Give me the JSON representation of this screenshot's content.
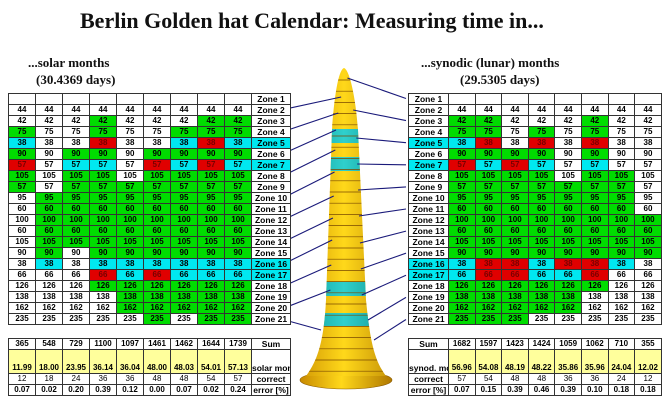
{
  "title": "Berlin Golden hat Calendar: Measuring time in...",
  "left": {
    "heading": "...solar months",
    "subheading": "(30.4369 days)",
    "zones": [
      {
        "label": "Zone 1",
        "value": "",
        "colors": "wwwwwwwww",
        "label_color": "w"
      },
      {
        "label": "Zone 2",
        "value": "44",
        "colors": "wwwwwwwww",
        "label_color": "w"
      },
      {
        "label": "Zone 3",
        "value": "42",
        "colors": "wwwgwwwgg",
        "label_color": "w"
      },
      {
        "label": "Zone 4",
        "value": "75",
        "colors": "gwwgwwggg",
        "label_color": "w"
      },
      {
        "label": "Zone 5",
        "value": "38",
        "colors": "cwwrwwcrc",
        "label_color": "c"
      },
      {
        "label": "Zone 6",
        "value": "90",
        "colors": "gwggwgggg",
        "label_color": "w"
      },
      {
        "label": "Zone 7",
        "value": "57",
        "colors": "rwccwrcrc",
        "label_color": "c"
      },
      {
        "label": "Zone 8",
        "value": "105",
        "colors": "gwggwgggg",
        "label_color": "w"
      },
      {
        "label": "Zone 9",
        "value": "57",
        "colors": "gwggggggg",
        "label_color": "w"
      },
      {
        "label": "Zone 10",
        "value": "95",
        "colors": "wgggggggg",
        "label_color": "w"
      },
      {
        "label": "Zone 11",
        "value": "60",
        "colors": "wgggggggg",
        "label_color": "w"
      },
      {
        "label": "Zone 12",
        "value": "100",
        "colors": "wgggggggg",
        "label_color": "w"
      },
      {
        "label": "Zone 13",
        "value": "60",
        "colors": "wgggggggg",
        "label_color": "w"
      },
      {
        "label": "Zone 14",
        "value": "105",
        "colors": "wgggggggg",
        "label_color": "w"
      },
      {
        "label": "Zone 15",
        "value": "90",
        "colors": "wgwgggggg",
        "label_color": "w"
      },
      {
        "label": "Zone 16",
        "value": "38",
        "colors": "wcwcccccc",
        "label_color": "c"
      },
      {
        "label": "Zone 17",
        "value": "66",
        "colors": "wwwrcrccc",
        "label_color": "c"
      },
      {
        "label": "Zone 18",
        "value": "126",
        "colors": "wwwgggggg",
        "label_color": "w"
      },
      {
        "label": "Zone 19",
        "value": "138",
        "colors": "wwwwggggg",
        "label_color": "w"
      },
      {
        "label": "Zone 20",
        "value": "162",
        "colors": "wwwwggggg",
        "label_color": "w"
      },
      {
        "label": "Zone 21",
        "value": "235",
        "colors": "wwwwwgwgg",
        "label_color": "w"
      }
    ],
    "summary": {
      "sum_label": "Sum",
      "sums": [
        "365",
        "548",
        "729",
        "1100",
        "1097",
        "1461",
        "1462",
        "1644",
        "1739"
      ],
      "month_label": "solar month",
      "months": [
        "11.99",
        "18.00",
        "23.95",
        "36.14",
        "36.04",
        "48.00",
        "48.03",
        "54.01",
        "57.13"
      ],
      "correct_label": "correct",
      "correct": [
        "12",
        "18",
        "24",
        "36",
        "36",
        "48",
        "48",
        "54",
        "57"
      ],
      "error_label": "error [%]",
      "errors": [
        "0.07",
        "0.02",
        "0.20",
        "0.39",
        "0.12",
        "0.00",
        "0.07",
        "0.02",
        "0.24"
      ]
    }
  },
  "right": {
    "heading": "...synodic (lunar) months",
    "subheading": "(29.5305 days)",
    "zones": [
      {
        "label": "Zone 1",
        "value": "",
        "colors": "wwwwwwww",
        "label_color": "w"
      },
      {
        "label": "Zone 2",
        "value": "44",
        "colors": "wwwwwwww",
        "label_color": "w"
      },
      {
        "label": "Zone 3",
        "value": "42",
        "colors": "ggwwwgww",
        "label_color": "w"
      },
      {
        "label": "Zone 4",
        "value": "75",
        "colors": "ggwgwgww",
        "label_color": "w"
      },
      {
        "label": "Zone 5",
        "value": "38",
        "colors": "crwrwrww",
        "label_color": "c"
      },
      {
        "label": "Zone 6",
        "value": "90",
        "colors": "ggggwgww",
        "label_color": "w"
      },
      {
        "label": "Zone 7",
        "value": "57",
        "colors": "rcrcwcww",
        "label_color": "c"
      },
      {
        "label": "Zone 8",
        "value": "105",
        "colors": "ggggwggw",
        "label_color": "w"
      },
      {
        "label": "Zone 9",
        "value": "57",
        "colors": "gggggggw",
        "label_color": "w"
      },
      {
        "label": "Zone 10",
        "value": "95",
        "colors": "gggggggw",
        "label_color": "w"
      },
      {
        "label": "Zone 11",
        "value": "60",
        "colors": "gggggggw",
        "label_color": "w"
      },
      {
        "label": "Zone 12",
        "value": "100",
        "colors": "gggggggg",
        "label_color": "w"
      },
      {
        "label": "Zone 13",
        "value": "60",
        "colors": "gggggggg",
        "label_color": "w"
      },
      {
        "label": "Zone 14",
        "value": "105",
        "colors": "gggggggg",
        "label_color": "w"
      },
      {
        "label": "Zone 15",
        "value": "90",
        "colors": "gggggggg",
        "label_color": "w"
      },
      {
        "label": "Zone 16",
        "value": "38",
        "colors": "crrcrrcw",
        "label_color": "c"
      },
      {
        "label": "Zone 17",
        "value": "66",
        "colors": "crrccrww",
        "label_color": "c"
      },
      {
        "label": "Zone 18",
        "value": "126",
        "colors": "ggggggww",
        "label_color": "w"
      },
      {
        "label": "Zone 19",
        "value": "138",
        "colors": "gggggwww",
        "label_color": "w"
      },
      {
        "label": "Zone 20",
        "value": "162",
        "colors": "gggggwww",
        "label_color": "w"
      },
      {
        "label": "Zone 21",
        "value": "235",
        "colors": "gggwwwww",
        "label_color": "w"
      }
    ],
    "summary": {
      "sum_label": "Sum",
      "sums": [
        "1682",
        "1597",
        "1423",
        "1424",
        "1059",
        "1062",
        "710",
        "355"
      ],
      "month_label": "synod. month",
      "months": [
        "56.96",
        "54.08",
        "48.19",
        "48.22",
        "35.86",
        "35.96",
        "24.04",
        "12.02"
      ],
      "correct_label": "correct",
      "correct": [
        "57",
        "54",
        "48",
        "48",
        "36",
        "36",
        "24",
        "12"
      ],
      "error_label": "error [%]",
      "errors": [
        "0.07",
        "0.15",
        "0.39",
        "0.46",
        "0.39",
        "0.10",
        "0.18",
        "0.18"
      ]
    }
  },
  "colors": {
    "green": "#00dc00",
    "cyan": "#00e8f0",
    "red": "#e00000",
    "yellow": "#ffff9c",
    "gold": "#f5b800",
    "line": "#1a1a7a"
  }
}
